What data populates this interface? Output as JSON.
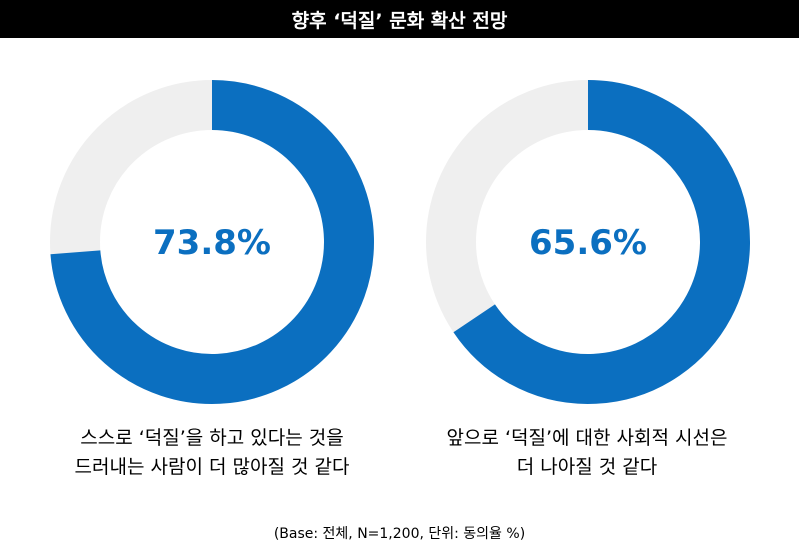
{
  "title": "향후 ‘덕질’ 문화 확산 전망",
  "colors": {
    "fill": "#0b6fc0",
    "track": "#efefef",
    "title_bg": "#000000"
  },
  "chart_data": [
    {
      "type": "pie",
      "value": 73.8,
      "remainder": 26.2,
      "center_label": "73.8%",
      "caption_lines": [
        "스스로 ‘덕질’을 하고 있다는 것을",
        "드러내는 사람이 더 많아질 것 같다"
      ]
    },
    {
      "type": "pie",
      "value": 65.6,
      "remainder": 34.4,
      "center_label": "65.6%",
      "caption_lines": [
        "앞으로 ‘덕질’에 대한 사회적 시선은",
        "더 나아질 것 같다"
      ]
    }
  ],
  "footnote": "(Base: 전체, N=1,200, 단위: 동의율 %)"
}
